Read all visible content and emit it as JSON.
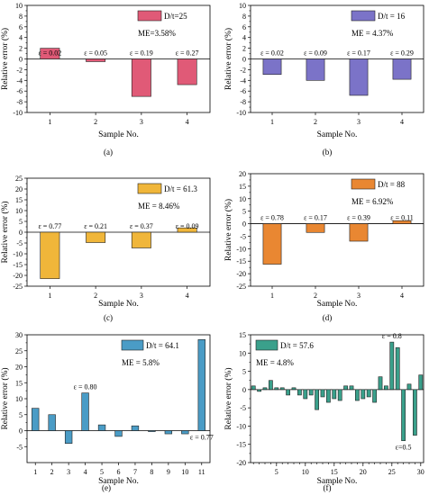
{
  "chart_data": [
    {
      "type": "bar",
      "panel_label": "(a)",
      "legend": "D/t=25",
      "me": "ME=3.58%",
      "color": "#e05a77",
      "xlabel": "Sample No.",
      "ylabel": "Relative error (%)",
      "categories": [
        "1",
        "2",
        "3",
        "4"
      ],
      "values": [
        2.0,
        -0.5,
        -7.0,
        -4.8
      ],
      "ylim": [
        -10,
        10
      ],
      "yticks": [
        -10,
        -8,
        -6,
        -4,
        -2,
        0,
        2,
        4,
        6,
        8,
        10
      ],
      "annotations": [
        {
          "bar": 0,
          "text": "ε = 0.02"
        },
        {
          "bar": 1,
          "text": "ε = 0.05"
        },
        {
          "bar": 2,
          "text": "ε = 0.19"
        },
        {
          "bar": 3,
          "text": "ε = 0.27"
        }
      ]
    },
    {
      "type": "bar",
      "panel_label": "(b)",
      "legend": "D/t = 16",
      "me": "ME = 4.37%",
      "color": "#7b73c8",
      "xlabel": "Sample No.",
      "ylabel": "Relative error (%)",
      "categories": [
        "1",
        "2",
        "3",
        "4"
      ],
      "values": [
        -2.9,
        -4.0,
        -6.8,
        -3.8
      ],
      "ylim": [
        -10,
        10
      ],
      "yticks": [
        -10,
        -8,
        -6,
        -4,
        -2,
        0,
        2,
        4,
        6,
        8,
        10
      ],
      "annotations": [
        {
          "bar": 0,
          "text": "ε = 0.02"
        },
        {
          "bar": 1,
          "text": "ε = 0.09"
        },
        {
          "bar": 2,
          "text": "ε = 0.17"
        },
        {
          "bar": 3,
          "text": "ε = 0.29"
        }
      ]
    },
    {
      "type": "bar",
      "panel_label": "(c)",
      "legend": "D/t = 61.3",
      "me": "ME = 8.46%",
      "color": "#f0b63a",
      "xlabel": "Sample No.",
      "ylabel": "Relative error (%)",
      "categories": [
        "1",
        "2",
        "3",
        "4"
      ],
      "values": [
        -21.5,
        -4.8,
        -7.3,
        2.0
      ],
      "ylim": [
        -25,
        25
      ],
      "yticks": [
        -25,
        -20,
        -15,
        -10,
        -5,
        0,
        5,
        10,
        15,
        20,
        25
      ],
      "annotations": [
        {
          "bar": 0,
          "text": "ε = 0.77"
        },
        {
          "bar": 1,
          "text": "ε = 0.21"
        },
        {
          "bar": 2,
          "text": "ε = 0.37"
        },
        {
          "bar": 3,
          "text": "ε = 0.09"
        }
      ]
    },
    {
      "type": "bar",
      "panel_label": "(d)",
      "legend": "D/t = 88",
      "me": "ME = 6.92%",
      "color": "#e98732",
      "xlabel": "Sample No.",
      "ylabel": "Relative error (%)",
      "categories": [
        "1",
        "2",
        "3",
        "4"
      ],
      "values": [
        -16.2,
        -3.5,
        -7.0,
        1.2
      ],
      "ylim": [
        -25,
        20
      ],
      "yticks": [
        -25,
        -20,
        -15,
        -10,
        -5,
        0,
        5,
        10,
        15,
        20
      ],
      "annotations": [
        {
          "bar": 0,
          "text": "ε = 0.78"
        },
        {
          "bar": 1,
          "text": "ε = 0.17"
        },
        {
          "bar": 2,
          "text": "ε = 0.39"
        },
        {
          "bar": 3,
          "text": "ε = 0.11"
        }
      ]
    },
    {
      "type": "bar",
      "panel_label": "(e)",
      "legend": "D/t = 64.1",
      "me": "ME = 5.8%",
      "color": "#4a9cc6",
      "xlabel": "Sample No.",
      "ylabel": "Relative error (%)",
      "categories": [
        "1",
        "2",
        "3",
        "4",
        "5",
        "6",
        "7",
        "8",
        "9",
        "10",
        "11"
      ],
      "values": [
        7.0,
        5.0,
        -4.0,
        11.8,
        1.8,
        -1.8,
        1.5,
        -0.3,
        -1.0,
        -1.0,
        28.5
      ],
      "ylim": [
        -10,
        30
      ],
      "yticks": [
        -5,
        0,
        5,
        10,
        15,
        20,
        25,
        30
      ],
      "annotations": [
        {
          "bar": 3,
          "text": "ε = 0.80",
          "pos": "above"
        },
        {
          "bar": 10,
          "text": "ε = 0.77",
          "pos": "below"
        }
      ]
    },
    {
      "type": "bar",
      "panel_label": "(f)",
      "legend": "D/t = 57.6",
      "me": "ME = 4.8%",
      "color": "#3aa08b",
      "xlabel": "Sample No.",
      "ylabel": "Relative error (%)",
      "categories": [
        "1",
        "2",
        "3",
        "4",
        "5",
        "6",
        "7",
        "8",
        "9",
        "10",
        "11",
        "12",
        "13",
        "14",
        "15",
        "16",
        "17",
        "18",
        "19",
        "20",
        "21",
        "22",
        "23",
        "24",
        "25",
        "26",
        "27",
        "28",
        "29",
        "30"
      ],
      "x_tick_labels": [
        "5",
        "10",
        "15",
        "20",
        "25",
        "30"
      ],
      "x_tick_values": [
        5,
        10,
        15,
        20,
        25,
        30
      ],
      "values": [
        1.0,
        -0.5,
        0.5,
        2.5,
        0.5,
        0.5,
        -1.5,
        0.5,
        -1.5,
        -2.5,
        -1.5,
        -5.5,
        -2.0,
        -3.5,
        -2.5,
        -3.0,
        1.0,
        1.0,
        -3.0,
        -2.5,
        -2.0,
        -3.5,
        3.5,
        1.0,
        13.0,
        11.5,
        -14.0,
        1.5,
        -12.5,
        4.0
      ],
      "ylim": [
        -20,
        15
      ],
      "yticks": [
        -20,
        -15,
        -10,
        -5,
        0,
        5,
        10,
        15
      ],
      "annotations": [
        {
          "bar": 24,
          "text": "ε = 0.8",
          "pos": "above"
        },
        {
          "bar": 26,
          "text": "ε=0.5",
          "pos": "below"
        }
      ]
    }
  ]
}
